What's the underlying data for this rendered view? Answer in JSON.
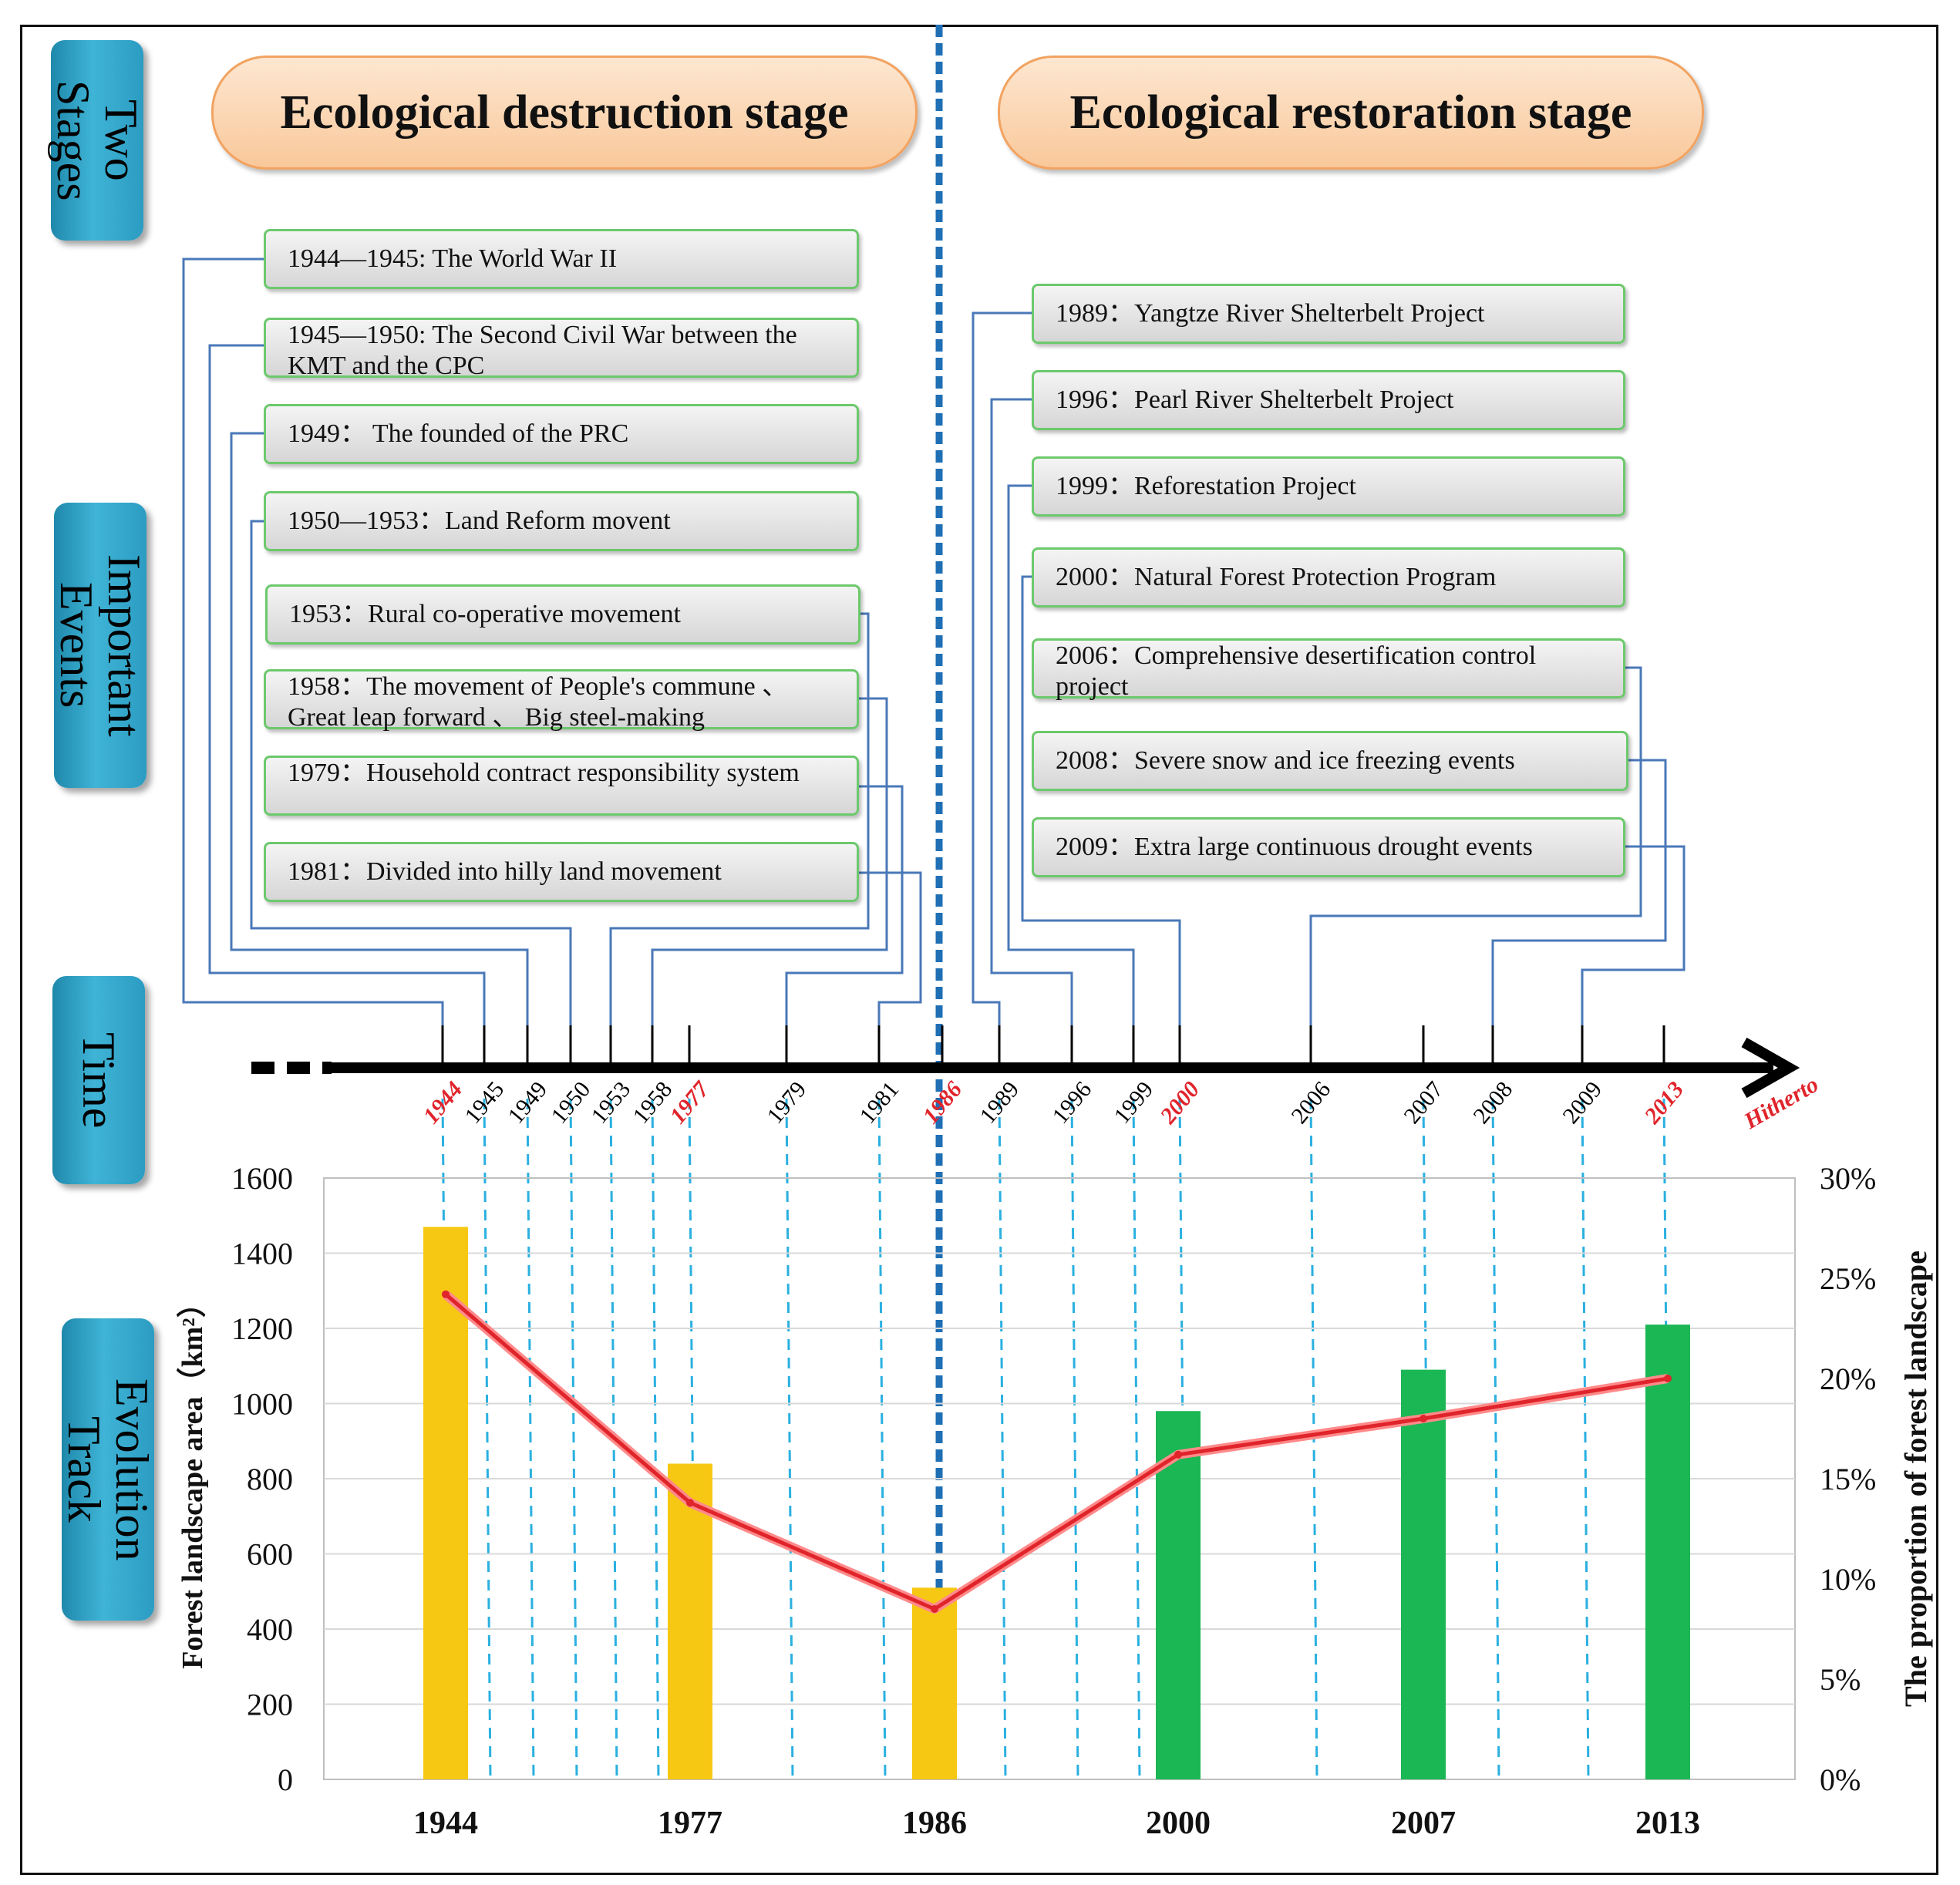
{
  "side_labels": {
    "two_stages": "Two\nStages",
    "important_events": "Important\nEvents",
    "time": "Time",
    "evolution_track": "Evolution\nTrack"
  },
  "stages": {
    "destruction": "Ecological destruction stage",
    "restoration": "Ecological restoration stage"
  },
  "events_left": [
    {
      "year": 1944,
      "label": "1944—1945: The World War II"
    },
    {
      "year": 1945,
      "label": "1945—1950:  The Second Civil War between the KMT and the CPC"
    },
    {
      "year": 1949,
      "label": "1949：  The founded of the PRC"
    },
    {
      "year": 1950,
      "label": "1950—1953：Land Reform movent"
    },
    {
      "year": 1953,
      "label": "1953：Rural co-operative movement"
    },
    {
      "year": 1958,
      "label": "1958：The movement of People's commune 、 Great leap forward 、 Big steel-making"
    },
    {
      "year": 1979,
      "label": "1979：Household contract responsibility system"
    },
    {
      "year": 1981,
      "label": "1981：Divided into hilly land movement"
    }
  ],
  "events_right": [
    {
      "year": 1989,
      "label": "1989：Yangtze River Shelterbelt Project"
    },
    {
      "year": 1996,
      "label": "1996：Pearl River Shelterbelt Project"
    },
    {
      "year": 1999,
      "label": "1999：Reforestation Project"
    },
    {
      "year": 2000,
      "label": "2000：Natural Forest Protection Program"
    },
    {
      "year": 2006,
      "label": "2006：Comprehensive desertification control project"
    },
    {
      "year": 2008,
      "label": "2008：Severe snow and ice freezing events"
    },
    {
      "year": 2009,
      "label": "2009：Extra large continuous drought events"
    }
  ],
  "timeline": {
    "ticks": [
      {
        "label": "1944",
        "highlight": true
      },
      {
        "label": "1945",
        "highlight": false
      },
      {
        "label": "1949",
        "highlight": false
      },
      {
        "label": "1950",
        "highlight": false
      },
      {
        "label": "1953",
        "highlight": false
      },
      {
        "label": "1958",
        "highlight": false
      },
      {
        "label": "1977",
        "highlight": true
      },
      {
        "label": "1979",
        "highlight": false
      },
      {
        "label": "1981",
        "highlight": false
      },
      {
        "label": "1986",
        "highlight": true
      },
      {
        "label": "1989",
        "highlight": false
      },
      {
        "label": "1996",
        "highlight": false
      },
      {
        "label": "1999",
        "highlight": false
      },
      {
        "label": "2000",
        "highlight": true
      },
      {
        "label": "2006",
        "highlight": false
      },
      {
        "label": "2007",
        "highlight": false
      },
      {
        "label": "2008",
        "highlight": false
      },
      {
        "label": "2009",
        "highlight": false
      },
      {
        "label": "2013",
        "highlight": true
      }
    ],
    "end_label": "Hitherto",
    "highlight_color": "#e0242b"
  },
  "chart_data": {
    "type": "bar",
    "categories": [
      "1944",
      "1977",
      "1986",
      "2000",
      "2007",
      "2013"
    ],
    "series": [
      {
        "name": "",
        "axis": "left",
        "kind": "bar",
        "values": [
          1470,
          840,
          510,
          980,
          1090,
          1210
        ],
        "colors": [
          "#f6c813",
          "#f6c813",
          "#f6c813",
          "#1ab754",
          "#1ab754",
          "#1ab754"
        ]
      },
      {
        "name": "",
        "axis": "right",
        "kind": "line",
        "color": "#e0242b",
        "values": [
          24.2,
          13.8,
          8.5,
          16.2,
          18.0,
          20.0
        ]
      }
    ],
    "ylabel": "Forest landscape area（km²）",
    "y2label": "The proportion of forest landscape",
    "ylim": [
      0,
      1600
    ],
    "yticks": [
      "0",
      "200",
      "400",
      "600",
      "800",
      "1000",
      "1200",
      "1400",
      "1600"
    ],
    "y2lim": [
      0,
      30
    ],
    "y2ticks": [
      "0%",
      "5%",
      "10%",
      "15%",
      "20%",
      "25%",
      "30%"
    ],
    "grid": true
  }
}
